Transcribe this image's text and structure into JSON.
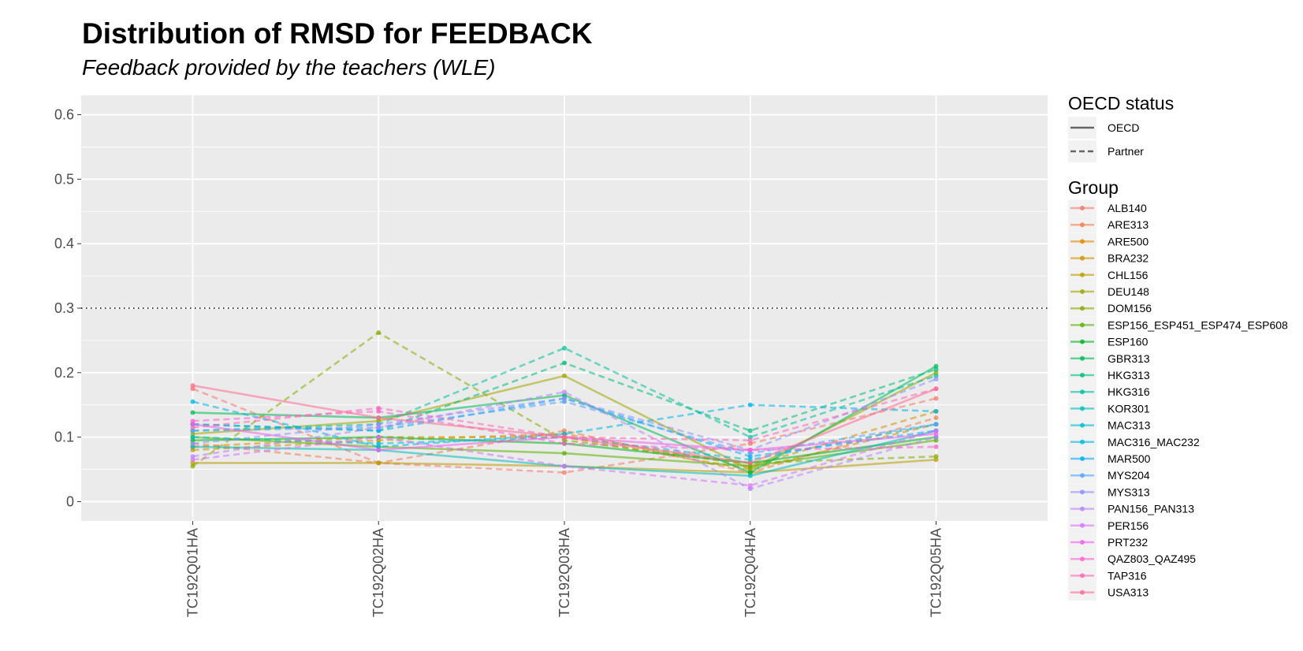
{
  "chart_data": {
    "type": "line",
    "title": "Distribution of RMSD for FEEDBACK",
    "subtitle": "Feedback provided by the teachers (WLE)",
    "xlabel": "",
    "ylabel": "",
    "categories": [
      "TC192Q01HA",
      "TC192Q02HA",
      "TC192Q03HA",
      "TC192Q04HA",
      "TC192Q05HA"
    ],
    "ylim": [
      -0.03,
      0.63
    ],
    "yticks": [
      0,
      0.1,
      0.2,
      0.3,
      0.4,
      0.5,
      0.6
    ],
    "ytick_labels": [
      "0",
      "0.1",
      "0.2",
      "0.3",
      "0.4",
      "0.5",
      "0.6"
    ],
    "reference_line": 0.3,
    "grid": true,
    "legend_position": "right",
    "linetype_legend": {
      "title": "OECD status",
      "entries": [
        {
          "label": "OECD",
          "style": "solid"
        },
        {
          "label": "Partner",
          "style": "dashed"
        }
      ]
    },
    "group_legend_title": "Group",
    "series": [
      {
        "name": "ALB140",
        "status": "Partner",
        "color": "#F8766D",
        "values": [
          0.175,
          0.06,
          0.045,
          0.09,
          0.16
        ]
      },
      {
        "name": "ARE313",
        "status": "Partner",
        "color": "#F0804F",
        "values": [
          0.09,
          0.06,
          0.11,
          0.045,
          0.13
        ]
      },
      {
        "name": "ARE500",
        "status": "Partner",
        "color": "#E38900",
        "values": [
          0.085,
          0.1,
          0.1,
          0.05,
          0.12
        ]
      },
      {
        "name": "BRA232",
        "status": "Partner",
        "color": "#D19400",
        "values": [
          0.08,
          0.095,
          0.105,
          0.055,
          0.14
        ]
      },
      {
        "name": "CHL156",
        "status": "OECD",
        "color": "#BB9D00",
        "values": [
          0.06,
          0.06,
          0.055,
          0.045,
          0.065
        ]
      },
      {
        "name": "DEU148",
        "status": "OECD",
        "color": "#A3A500",
        "values": [
          0.105,
          0.125,
          0.195,
          0.05,
          0.2
        ]
      },
      {
        "name": "DOM156",
        "status": "Partner",
        "color": "#85AD00",
        "values": [
          0.055,
          0.262,
          0.095,
          0.06,
          0.07
        ]
      },
      {
        "name": "ESP156_ESP451_ESP474_ESP608",
        "status": "OECD",
        "color": "#5BB300",
        "values": [
          0.1,
          0.085,
          0.075,
          0.055,
          0.095
        ]
      },
      {
        "name": "ESP160",
        "status": "OECD",
        "color": "#00B81F",
        "values": [
          0.095,
          0.1,
          0.09,
          0.06,
          0.1
        ]
      },
      {
        "name": "GBR313",
        "status": "OECD",
        "color": "#00BC56",
        "values": [
          0.138,
          0.13,
          0.165,
          0.045,
          0.21
        ]
      },
      {
        "name": "HKG313",
        "status": "Partner",
        "color": "#00BE7D",
        "values": [
          0.12,
          0.11,
          0.215,
          0.11,
          0.205
        ]
      },
      {
        "name": "HKG316",
        "status": "Partner",
        "color": "#00C19F",
        "values": [
          0.11,
          0.12,
          0.238,
          0.1,
          0.195
        ]
      },
      {
        "name": "KOR301",
        "status": "OECD",
        "color": "#00C0BA",
        "values": [
          0.085,
          0.08,
          0.055,
          0.04,
          0.11
        ]
      },
      {
        "name": "MAC313",
        "status": "Partner",
        "color": "#00BDD2",
        "values": [
          0.1,
          0.09,
          0.1,
          0.065,
          0.12
        ]
      },
      {
        "name": "MAC316_MAC232",
        "status": "Partner",
        "color": "#00B7E8",
        "values": [
          0.155,
          0.085,
          0.105,
          0.15,
          0.14
        ]
      },
      {
        "name": "MAR500",
        "status": "Partner",
        "color": "#00AEF9",
        "values": [
          0.12,
          0.11,
          0.16,
          0.07,
          0.11
        ]
      },
      {
        "name": "MYS204",
        "status": "Partner",
        "color": "#53A4FF",
        "values": [
          0.11,
          0.115,
          0.155,
          0.075,
          0.12
        ]
      },
      {
        "name": "MYS313",
        "status": "Partner",
        "color": "#8F91FF",
        "values": [
          0.09,
          0.12,
          0.16,
          0.08,
          0.19
        ]
      },
      {
        "name": "PAN156_PAN313",
        "status": "Partner",
        "color": "#B983FF",
        "values": [
          0.07,
          0.115,
          0.17,
          0.02,
          0.1
        ]
      },
      {
        "name": "PER156",
        "status": "Partner",
        "color": "#D973FC",
        "values": [
          0.065,
          0.1,
          0.055,
          0.025,
          0.11
        ]
      },
      {
        "name": "PRT232",
        "status": "OECD",
        "color": "#EE61EC",
        "values": [
          0.12,
          0.08,
          0.1,
          0.08,
          0.105
        ]
      },
      {
        "name": "QAZ803_QAZ495",
        "status": "Partner",
        "color": "#FB62D2",
        "values": [
          0.125,
          0.14,
          0.09,
          0.08,
          0.085
        ]
      },
      {
        "name": "TAP316",
        "status": "Partner",
        "color": "#FF66B6",
        "values": [
          0.115,
          0.145,
          0.1,
          0.095,
          0.175
        ]
      },
      {
        "name": "USA313",
        "status": "OECD",
        "color": "#FF6C91",
        "values": [
          0.18,
          0.13,
          0.1,
          0.06,
          0.175
        ]
      }
    ]
  }
}
